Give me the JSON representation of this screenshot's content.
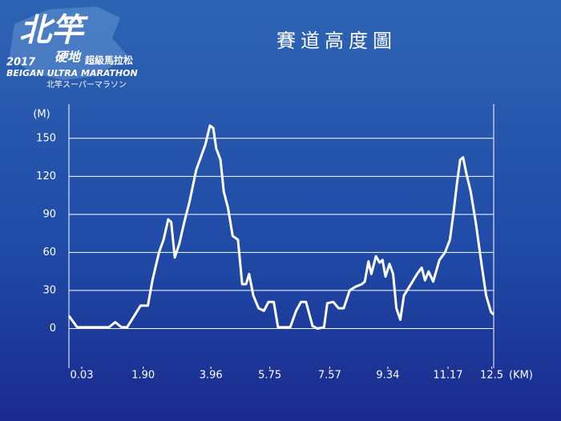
{
  "logo": {
    "name": "北竿",
    "year": "2017",
    "surface": "硬地",
    "event": "超級馬拉松",
    "english": "BEIGAN ULTRA MARATHON",
    "japanese": "北竿スーパーマラソン"
  },
  "chart_data": {
    "type": "line",
    "title": "賽道高度圖",
    "y_label": "(M)",
    "x_label": "(KM)",
    "color": "#ffffff",
    "x": [
      -0.36,
      -0.11,
      0.86,
      1.05,
      1.24,
      1.41,
      1.82,
      2.04,
      2.18,
      2.38,
      2.52,
      2.66,
      2.75,
      2.86,
      3.0,
      3.14,
      3.31,
      3.51,
      3.65,
      3.79,
      3.93,
      4.03,
      4.12,
      4.25,
      4.35,
      4.48,
      4.62,
      4.78,
      4.91,
      5.03,
      5.12,
      5.25,
      5.41,
      5.57,
      5.71,
      5.87,
      6.0,
      6.37,
      6.55,
      6.7,
      6.85,
      7.05,
      7.2,
      7.4,
      7.5,
      7.68,
      7.84,
      8.0,
      8.18,
      8.36,
      8.55,
      8.64,
      8.75,
      8.84,
      8.98,
      9.09,
      9.18,
      9.27,
      9.39,
      9.5,
      9.6,
      9.72,
      9.83,
      9.97,
      10.09,
      10.23,
      10.37,
      10.47,
      10.58,
      10.72,
      10.91,
      11.08,
      11.23,
      11.34,
      11.44,
      11.54,
      11.63,
      11.73,
      11.86,
      12.02,
      12.19,
      12.33,
      12.48,
      12.56
    ],
    "values": [
      10,
      1,
      1,
      5,
      1,
      1,
      18,
      18,
      38,
      60,
      70,
      86,
      84,
      56,
      67,
      83,
      100,
      125,
      135,
      145,
      160,
      158,
      142,
      133,
      108,
      95,
      73,
      70,
      35,
      35,
      43,
      26,
      16,
      14,
      21,
      21,
      1,
      1,
      14,
      21,
      21,
      2,
      0,
      1,
      20,
      21,
      16,
      16,
      30,
      33,
      35,
      37,
      53,
      43,
      57,
      52,
      54,
      41,
      51,
      43,
      16,
      7,
      26,
      32,
      37,
      43,
      48,
      38,
      45,
      37,
      54,
      60,
      70,
      92,
      114,
      133,
      135,
      122,
      108,
      83,
      51,
      26,
      13,
      11
    ],
    "xlim": [
      -0.36,
      12.56
    ],
    "ylim": [
      -30,
      177
    ],
    "xticks": [
      0.03,
      {
        "value": 1.9,
        "label": "1.90"
      },
      3.96,
      5.75,
      7.57,
      9.34,
      11.17,
      12.5
    ],
    "yticks": [
      0,
      30,
      60,
      90,
      120,
      150
    ],
    "grid": true
  }
}
